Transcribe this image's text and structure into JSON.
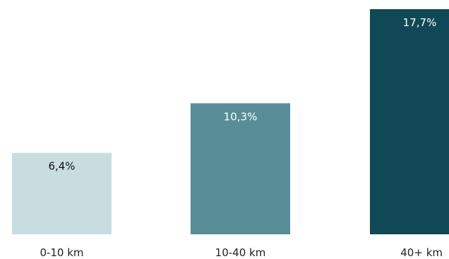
{
  "chart_data": {
    "type": "bar",
    "title": "",
    "xlabel": "",
    "ylabel": "",
    "categories": [
      "0-10 km",
      "10-40 km",
      "40+ km"
    ],
    "values": [
      6.4,
      10.3,
      17.7
    ],
    "value_labels": [
      "6,4%",
      "10,3%",
      "17,7%"
    ],
    "ylim": [
      0,
      17.7
    ],
    "grid": false,
    "legend": "none",
    "bar_colors": [
      "#c9dde0",
      "#588d97",
      "#104955"
    ],
    "label_colors": [
      "#111111",
      "#ffffff",
      "#ffffff"
    ]
  }
}
